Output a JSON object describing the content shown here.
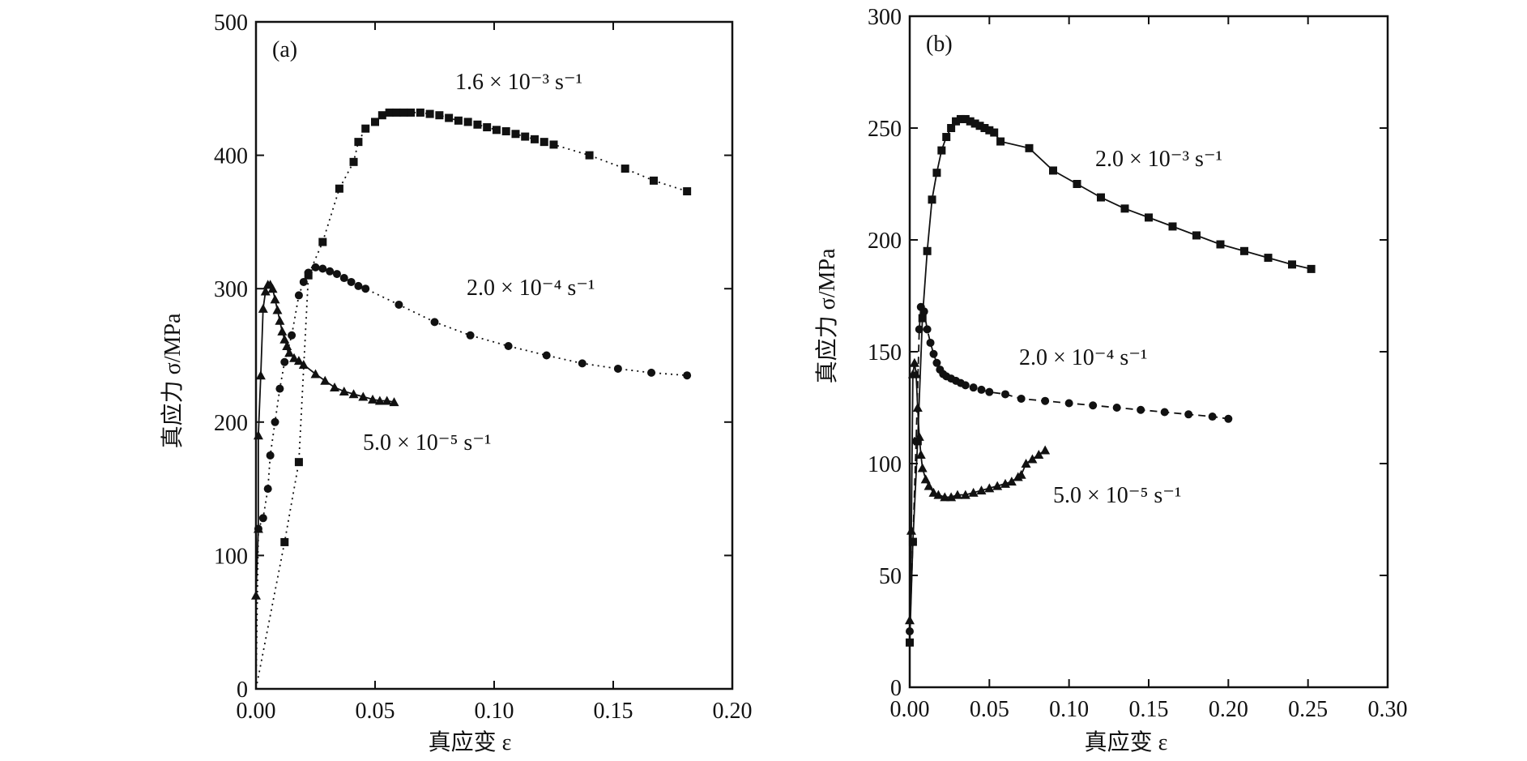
{
  "chart_data": [
    {
      "type": "line",
      "panel_label": "(a)",
      "xlabel": "真应变 ε",
      "ylabel": "真应力 σ/MPa",
      "xlim": [
        0,
        0.2
      ],
      "ylim": [
        0,
        500
      ],
      "x_ticks": [
        "0.00",
        "0.05",
        "0.10",
        "0.15",
        "0.20"
      ],
      "x_tick_values": [
        0,
        0.05,
        0.1,
        0.15,
        0.2
      ],
      "y_ticks": [
        "0",
        "100",
        "200",
        "300",
        "400",
        "500"
      ],
      "y_tick_values": [
        0,
        100,
        200,
        300,
        400,
        500
      ],
      "grid": false,
      "series": [
        {
          "name": "1.6 × 10⁻³ s⁻¹",
          "marker": "square",
          "line_style": "dotted",
          "points": [
            [
              0.0,
              0
            ],
            [
              0.012,
              110
            ],
            [
              0.018,
              170
            ],
            [
              0.022,
              310
            ],
            [
              0.028,
              335
            ],
            [
              0.035,
              375
            ],
            [
              0.041,
              395
            ],
            [
              0.043,
              410
            ],
            [
              0.046,
              420
            ],
            [
              0.05,
              425
            ],
            [
              0.053,
              430
            ],
            [
              0.056,
              432
            ],
            [
              0.059,
              432
            ],
            [
              0.062,
              432
            ],
            [
              0.065,
              432
            ],
            [
              0.069,
              432
            ],
            [
              0.073,
              431
            ],
            [
              0.077,
              430
            ],
            [
              0.081,
              428
            ],
            [
              0.085,
              426
            ],
            [
              0.089,
              425
            ],
            [
              0.093,
              423
            ],
            [
              0.097,
              421
            ],
            [
              0.101,
              419
            ],
            [
              0.105,
              418
            ],
            [
              0.109,
              416
            ],
            [
              0.113,
              414
            ],
            [
              0.117,
              412
            ],
            [
              0.121,
              410
            ],
            [
              0.125,
              408
            ],
            [
              0.14,
              400
            ],
            [
              0.155,
              390
            ],
            [
              0.167,
              381
            ],
            [
              0.181,
              373
            ]
          ]
        },
        {
          "name": "2.0 × 10⁻⁴ s⁻¹",
          "marker": "circle",
          "line_style": "dotted",
          "points": [
            [
              0.0,
              0
            ],
            [
              0.001,
              120
            ],
            [
              0.003,
              128
            ],
            [
              0.005,
              150
            ],
            [
              0.006,
              175
            ],
            [
              0.008,
              200
            ],
            [
              0.01,
              225
            ],
            [
              0.012,
              245
            ],
            [
              0.015,
              265
            ],
            [
              0.018,
              295
            ],
            [
              0.02,
              305
            ],
            [
              0.022,
              312
            ],
            [
              0.025,
              316
            ],
            [
              0.028,
              315
            ],
            [
              0.031,
              313
            ],
            [
              0.034,
              311
            ],
            [
              0.037,
              308
            ],
            [
              0.04,
              305
            ],
            [
              0.043,
              302
            ],
            [
              0.046,
              300
            ],
            [
              0.06,
              288
            ],
            [
              0.075,
              275
            ],
            [
              0.09,
              265
            ],
            [
              0.106,
              257
            ],
            [
              0.122,
              250
            ],
            [
              0.137,
              244
            ],
            [
              0.152,
              240
            ],
            [
              0.166,
              237
            ],
            [
              0.181,
              235
            ]
          ]
        },
        {
          "name": "5.0 × 10⁻⁵ s⁻¹",
          "marker": "triangle",
          "line_style": "solid",
          "points": [
            [
              0.0,
              0
            ],
            [
              0.0,
              70
            ],
            [
              0.001,
              120
            ],
            [
              0.001,
              190
            ],
            [
              0.002,
              235
            ],
            [
              0.003,
              285
            ],
            [
              0.004,
              298
            ],
            [
              0.005,
              303
            ],
            [
              0.006,
              303
            ],
            [
              0.007,
              300
            ],
            [
              0.008,
              292
            ],
            [
              0.009,
              284
            ],
            [
              0.01,
              276
            ],
            [
              0.011,
              268
            ],
            [
              0.012,
              262
            ],
            [
              0.013,
              257
            ],
            [
              0.014,
              252
            ],
            [
              0.016,
              248
            ],
            [
              0.018,
              246
            ],
            [
              0.02,
              243
            ],
            [
              0.025,
              236
            ],
            [
              0.029,
              231
            ],
            [
              0.033,
              226
            ],
            [
              0.037,
              223
            ],
            [
              0.041,
              221
            ],
            [
              0.045,
              219
            ],
            [
              0.049,
              217
            ],
            [
              0.052,
              216
            ],
            [
              0.055,
              216
            ],
            [
              0.058,
              215
            ]
          ]
        }
      ],
      "annotations": [
        {
          "series": 0,
          "text": "1.6 × 10⁻³ s⁻¹"
        },
        {
          "series": 1,
          "text": "2.0 × 10⁻⁴ s⁻¹"
        },
        {
          "series": 2,
          "text": "5.0 × 10⁻⁵ s⁻¹"
        }
      ]
    },
    {
      "type": "line",
      "panel_label": "(b)",
      "xlabel": "真应变 ε",
      "ylabel": "真应力 σ/MPa",
      "xlim": [
        0,
        0.3
      ],
      "ylim": [
        0,
        300
      ],
      "x_ticks": [
        "0.00",
        "0.05",
        "0.10",
        "0.15",
        "0.20",
        "0.25",
        "0.30"
      ],
      "x_tick_values": [
        0,
        0.05,
        0.1,
        0.15,
        0.2,
        0.25,
        0.3
      ],
      "y_ticks": [
        "0",
        "50",
        "100",
        "150",
        "200",
        "250",
        "300"
      ],
      "y_tick_values": [
        0,
        50,
        100,
        150,
        200,
        250,
        300
      ],
      "grid": false,
      "series": [
        {
          "name": "2.0 × 10⁻³ s⁻¹",
          "marker": "square",
          "line_style": "solid",
          "points": [
            [
              0.0,
              20
            ],
            [
              0.002,
              65
            ],
            [
              0.005,
              110
            ],
            [
              0.008,
              165
            ],
            [
              0.011,
              195
            ],
            [
              0.014,
              218
            ],
            [
              0.017,
              230
            ],
            [
              0.02,
              240
            ],
            [
              0.023,
              246
            ],
            [
              0.026,
              250
            ],
            [
              0.029,
              253
            ],
            [
              0.032,
              254
            ],
            [
              0.035,
              254
            ],
            [
              0.038,
              253
            ],
            [
              0.041,
              252
            ],
            [
              0.044,
              251
            ],
            [
              0.047,
              250
            ],
            [
              0.05,
              249
            ],
            [
              0.053,
              248
            ],
            [
              0.057,
              244
            ],
            [
              0.075,
              241
            ],
            [
              0.09,
              231
            ],
            [
              0.105,
              225
            ],
            [
              0.12,
              219
            ],
            [
              0.135,
              214
            ],
            [
              0.15,
              210
            ],
            [
              0.165,
              206
            ],
            [
              0.18,
              202
            ],
            [
              0.195,
              198
            ],
            [
              0.21,
              195
            ],
            [
              0.225,
              192
            ],
            [
              0.24,
              189
            ],
            [
              0.252,
              187
            ]
          ]
        },
        {
          "name": "2.0 × 10⁻⁴ s⁻¹",
          "marker": "circle",
          "line_style": "dashed",
          "points": [
            [
              0.0,
              25
            ],
            [
              0.002,
              65
            ],
            [
              0.004,
              110
            ],
            [
              0.006,
              160
            ],
            [
              0.007,
              170
            ],
            [
              0.009,
              168
            ],
            [
              0.011,
              160
            ],
            [
              0.013,
              154
            ],
            [
              0.015,
              149
            ],
            [
              0.017,
              145
            ],
            [
              0.019,
              142
            ],
            [
              0.021,
              140
            ],
            [
              0.023,
              139
            ],
            [
              0.026,
              138
            ],
            [
              0.029,
              137
            ],
            [
              0.032,
              136
            ],
            [
              0.035,
              135
            ],
            [
              0.04,
              134
            ],
            [
              0.045,
              133
            ],
            [
              0.05,
              132
            ],
            [
              0.06,
              131
            ],
            [
              0.07,
              129
            ],
            [
              0.085,
              128
            ],
            [
              0.1,
              127
            ],
            [
              0.115,
              126
            ],
            [
              0.13,
              125
            ],
            [
              0.145,
              124
            ],
            [
              0.16,
              123
            ],
            [
              0.175,
              122
            ],
            [
              0.19,
              121
            ],
            [
              0.2,
              120
            ]
          ]
        },
        {
          "name": "5.0 × 10⁻⁵ s⁻¹",
          "marker": "triangle",
          "line_style": "solid",
          "points": [
            [
              0.0,
              30
            ],
            [
              0.001,
              70
            ],
            [
              0.002,
              140
            ],
            [
              0.003,
              145
            ],
            [
              0.004,
              140
            ],
            [
              0.005,
              125
            ],
            [
              0.006,
              112
            ],
            [
              0.007,
              104
            ],
            [
              0.008,
              98
            ],
            [
              0.01,
              93
            ],
            [
              0.012,
              90
            ],
            [
              0.015,
              87
            ],
            [
              0.018,
              86
            ],
            [
              0.022,
              85
            ],
            [
              0.026,
              85
            ],
            [
              0.03,
              86
            ],
            [
              0.035,
              86
            ],
            [
              0.04,
              87
            ],
            [
              0.045,
              88
            ],
            [
              0.05,
              89
            ],
            [
              0.055,
              90
            ],
            [
              0.06,
              91
            ],
            [
              0.064,
              92
            ],
            [
              0.068,
              94
            ],
            [
              0.07,
              95
            ],
            [
              0.073,
              100
            ],
            [
              0.077,
              102
            ],
            [
              0.081,
              104
            ],
            [
              0.085,
              106
            ]
          ]
        }
      ],
      "annotations": [
        {
          "series": 0,
          "text": "2.0 × 10⁻³ s⁻¹"
        },
        {
          "series": 1,
          "text": "2.0 × 10⁻⁴ s⁻¹"
        },
        {
          "series": 2,
          "text": "5.0 × 10⁻⁵ s⁻¹"
        }
      ]
    }
  ]
}
